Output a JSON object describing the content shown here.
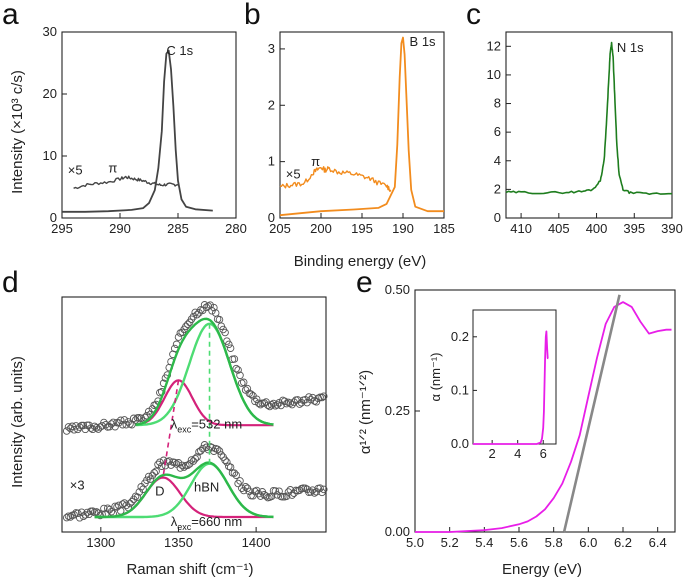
{
  "panel_labels": [
    "a",
    "b",
    "c",
    "d",
    "e"
  ],
  "shared": {
    "xps_ylabel": "Intensity (×10³ c/s)",
    "xps_xlabel": "Binding energy (eV)",
    "raman_ylabel": "Intensity (arb. units)",
    "raman_xlabel": "Raman shift (cm⁻¹)",
    "abs_ylabel": "α¹ᐟ² (nm⁻¹ᐟ²)",
    "abs_xlabel": "Energy (eV)"
  },
  "colors": {
    "C": "#444444",
    "B": "#f28c1e",
    "N": "#1e7d1e",
    "fit_total": "#2db84a",
    "hBN": "#4ddc73",
    "D": "#d4227a",
    "abs": "#e81ee8",
    "linear_fit": "#888888"
  },
  "chart_data": [
    {
      "id": "a",
      "type": "line",
      "peak_label": "C 1s",
      "scale_label": "×5",
      "feature_label": "π",
      "xlim": [
        295,
        280
      ],
      "ylim": [
        0,
        30
      ],
      "xticks": [
        295,
        290,
        285,
        280
      ],
      "yticks": [
        0,
        10,
        20,
        30
      ],
      "series": [
        {
          "x": [
            295,
            293,
            291,
            289,
            288,
            287.5,
            287,
            286.7,
            286.4,
            286.2,
            286.0,
            285.8,
            285.6,
            285.4,
            285.2,
            285.0,
            284.7,
            284.3,
            283.5,
            282
          ],
          "values": [
            1.0,
            1.0,
            1.1,
            1.3,
            1.6,
            2.4,
            4.5,
            8.0,
            14.0,
            22.0,
            26.5,
            27.0,
            24.0,
            18.0,
            11.0,
            6.0,
            3.0,
            1.8,
            1.4,
            1.2
          ]
        },
        {
          "x": [
            294,
            293,
            292,
            291,
            290,
            289.5,
            289,
            288.5,
            288,
            287.5,
            287,
            286.5,
            286,
            285.5,
            285
          ],
          "values": [
            4.8,
            5.3,
            5.6,
            5.8,
            6.3,
            6.6,
            6.4,
            6.2,
            6.0,
            5.7,
            5.5,
            5.3,
            5.4,
            5.4,
            5.4
          ]
        }
      ]
    },
    {
      "id": "b",
      "type": "line",
      "peak_label": "B 1s",
      "scale_label": "×5",
      "feature_label": "π",
      "xlim": [
        205,
        185
      ],
      "ylim": [
        0,
        3.3
      ],
      "xticks": [
        205,
        200,
        195,
        190,
        185
      ],
      "yticks": [
        0,
        1,
        2,
        3
      ],
      "series": [
        {
          "x": [
            205,
            200,
            196,
            193,
            192,
            191,
            190.7,
            190.4,
            190.2,
            190.0,
            189.8,
            189.6,
            189.3,
            189.0,
            188.5,
            187,
            185
          ],
          "values": [
            0.05,
            0.12,
            0.15,
            0.18,
            0.25,
            0.55,
            1.3,
            2.5,
            3.1,
            3.2,
            2.9,
            2.2,
            1.2,
            0.5,
            0.2,
            0.12,
            0.12
          ]
        },
        {
          "x": [
            205,
            204,
            203,
            202,
            201,
            200.5,
            200,
            199.5,
            199,
            198,
            197,
            196,
            195,
            194,
            193,
            192,
            191.5
          ],
          "values": [
            0.55,
            0.58,
            0.6,
            0.62,
            0.8,
            0.85,
            0.9,
            0.85,
            0.88,
            0.82,
            0.8,
            0.78,
            0.74,
            0.7,
            0.62,
            0.57,
            0.5
          ]
        }
      ]
    },
    {
      "id": "c",
      "type": "line",
      "peak_label": "N 1s",
      "xlim": [
        412,
        390
      ],
      "ylim": [
        0,
        13
      ],
      "xticks": [
        410,
        405,
        400,
        395,
        390
      ],
      "yticks": [
        0,
        2,
        4,
        6,
        8,
        10,
        12
      ],
      "series": [
        {
          "x": [
            412,
            410,
            407,
            404,
            402,
            400.5,
            399.5,
            399,
            398.7,
            398.4,
            398.2,
            398.0,
            397.8,
            397.6,
            397.3,
            397.0,
            396.5,
            395.5,
            393,
            390
          ],
          "values": [
            1.8,
            1.8,
            1.75,
            1.8,
            1.85,
            2.0,
            2.6,
            4.0,
            6.5,
            9.5,
            11.5,
            12.2,
            11.2,
            8.6,
            5.0,
            3.0,
            2.0,
            1.75,
            1.7,
            1.7
          ]
        }
      ]
    },
    {
      "id": "d",
      "type": "scatter",
      "xlim": [
        1275,
        1445
      ],
      "xticks": [
        1300,
        1350,
        1400
      ],
      "upper_label": "λexc=532 nm",
      "lower_label": "λexc=660 nm",
      "scale_label": "×3",
      "D_label": "D",
      "hBN_label": "hBN",
      "peaks": {
        "D_upper": 1350,
        "D_lower": 1340,
        "hBN": 1370
      }
    },
    {
      "id": "e",
      "type": "line",
      "xlim": [
        5.0,
        6.5
      ],
      "ylim": [
        0,
        0.5
      ],
      "xticks": [
        5.0,
        5.2,
        5.4,
        5.6,
        5.8,
        6.0,
        6.2,
        6.4
      ],
      "yticks": [
        0.0,
        0.25,
        0.5
      ],
      "ytick_labels": [
        "0.00",
        "0.25",
        "0.50"
      ],
      "series": [
        {
          "x": [
            5.0,
            5.2,
            5.4,
            5.5,
            5.6,
            5.65,
            5.7,
            5.75,
            5.8,
            5.85,
            5.9,
            5.95,
            6.0,
            6.05,
            6.1,
            6.15,
            6.2,
            6.25,
            6.3,
            6.35,
            6.4,
            6.45,
            6.48
          ],
          "values": [
            0.0,
            0.0,
            0.004,
            0.008,
            0.016,
            0.022,
            0.032,
            0.047,
            0.07,
            0.1,
            0.145,
            0.2,
            0.28,
            0.36,
            0.43,
            0.465,
            0.475,
            0.465,
            0.435,
            0.41,
            0.415,
            0.418,
            0.418
          ]
        }
      ],
      "linear_fit": {
        "x": [
          5.86,
          6.18
        ],
        "y": [
          0.0,
          0.49
        ]
      },
      "inset": {
        "ylabel": "α (nm⁻¹)",
        "xlim": [
          0.5,
          7
        ],
        "ylim": [
          0,
          0.25
        ],
        "xticks": [
          2,
          4,
          6
        ],
        "yticks": [
          0.0,
          0.1,
          0.2
        ],
        "ytick_labels": [
          "0.0",
          "0.1",
          "0.2"
        ],
        "x": [
          0.5,
          2,
          4,
          5.5,
          5.8,
          5.9,
          6.0,
          6.05,
          6.1,
          6.15,
          6.2,
          6.25,
          6.3,
          6.35,
          6.4
        ],
        "values": [
          0.0,
          0.0,
          0.0,
          0.0,
          0.003,
          0.01,
          0.03,
          0.06,
          0.11,
          0.16,
          0.2,
          0.21,
          0.18,
          0.16,
          0.16
        ]
      }
    }
  ]
}
